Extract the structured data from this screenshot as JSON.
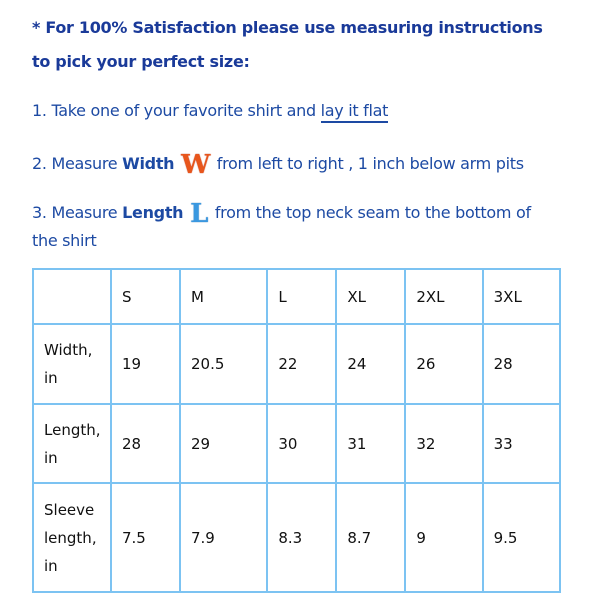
{
  "heading": {
    "line1": "* For 100% Satisfaction please use measuring instructions",
    "line2": "to pick your perfect size:"
  },
  "steps": [
    {
      "prefix": "1. Take one of your favorite shirt and ",
      "link": "lay it flat"
    },
    {
      "prefix": "2. Measure ",
      "bold": "Width",
      "icon": "W",
      "suffix": " from left to right , 1 inch below arm pits"
    },
    {
      "prefix": "3. Measure ",
      "bold": "Length",
      "icon": "L",
      "suffix": " from the top neck seam to the bottom of",
      "cont": "the shirt"
    }
  ],
  "table": {
    "headers": [
      "",
      "S",
      "M",
      "L",
      "XL",
      "2XL",
      "3XL"
    ],
    "rows": [
      {
        "label": "Width, in",
        "values": [
          "19",
          "20.5",
          "22",
          "24",
          "26",
          "28"
        ]
      },
      {
        "label": "Length, in",
        "values": [
          "28",
          "29",
          "30",
          "31",
          "32",
          "33"
        ]
      },
      {
        "label": "Sleeve length, in",
        "values": [
          "7.5",
          "7.9",
          "8.3",
          "8.7",
          "9",
          "9.5"
        ]
      }
    ]
  },
  "colors": {
    "text": "#1d4aa3",
    "heading": "#1a3a99",
    "table_border": "#7cc3f2",
    "width_icon": "#e8561c",
    "length_icon": "#3a98e0"
  }
}
